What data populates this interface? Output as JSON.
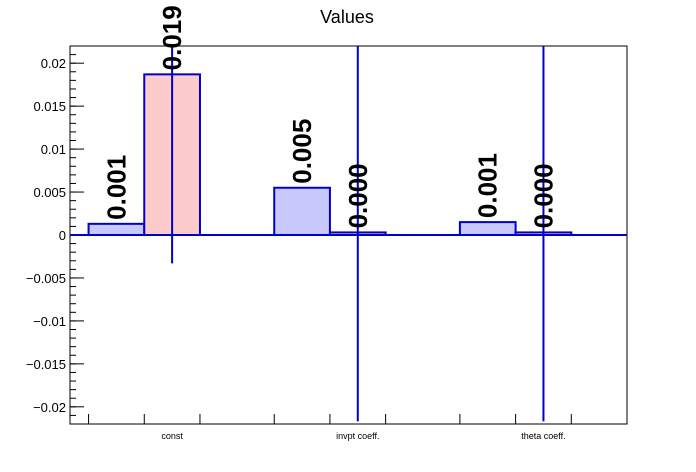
{
  "chart_data": {
    "type": "bar",
    "title": "Values",
    "categories": [
      "const",
      "invpt coeff.",
      "theta coeff."
    ],
    "series": [
      {
        "values": [
          0.0013,
          0.0055,
          0.0015
        ],
        "labels": [
          "0.001",
          "0.005",
          "0.001"
        ],
        "color": "#c8c8fa"
      },
      {
        "values": [
          0.0187,
          0.0003,
          0.0003
        ],
        "labels": [
          "0.019",
          "0.000",
          "0.000"
        ],
        "color": "#fccccc"
      }
    ],
    "error_bars": [
      0.022,
      0.022,
      0.022
    ],
    "ylim": [
      -0.022,
      0.022
    ],
    "yticks": [
      -0.02,
      -0.015,
      -0.01,
      -0.005,
      0,
      0.005,
      0.01,
      0.015,
      0.02
    ],
    "ytick_labels": [
      "−0.02",
      "−0.015",
      "−0.01",
      "−0.005",
      "0",
      "0.005",
      "0.01",
      "0.015",
      "0.02"
    ],
    "xlabel": "",
    "ylabel": "",
    "grid": false,
    "legend": "none",
    "axis_color": "#000000",
    "bar_edge_color": "#0000cc"
  }
}
